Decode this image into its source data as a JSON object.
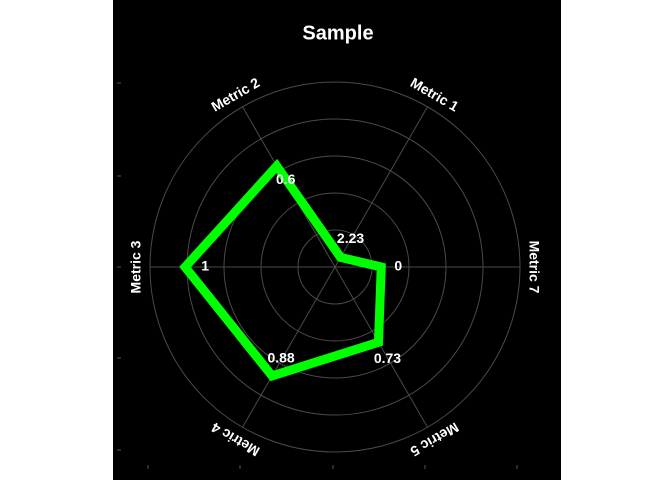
{
  "chart_data": {
    "type": "radar",
    "title": "Sample",
    "categories": [
      "Metric 1",
      "Metric 2",
      "Metric 3",
      "Metric 4",
      "Metric 5",
      "Metric 7"
    ],
    "series": [
      {
        "name": "Sample",
        "color": "#00ff00",
        "values": [
          0.06,
          0.63,
          0.81,
          0.68,
          0.47,
          0.25
        ]
      }
    ],
    "annotations": [
      "2.23",
      "0.6",
      "1",
      "0.88",
      "0.73",
      "0"
    ],
    "rlim": [
      0,
      1
    ],
    "rticks": [
      0.2,
      0.4,
      0.6,
      0.8,
      1.0
    ],
    "grid": true
  }
}
